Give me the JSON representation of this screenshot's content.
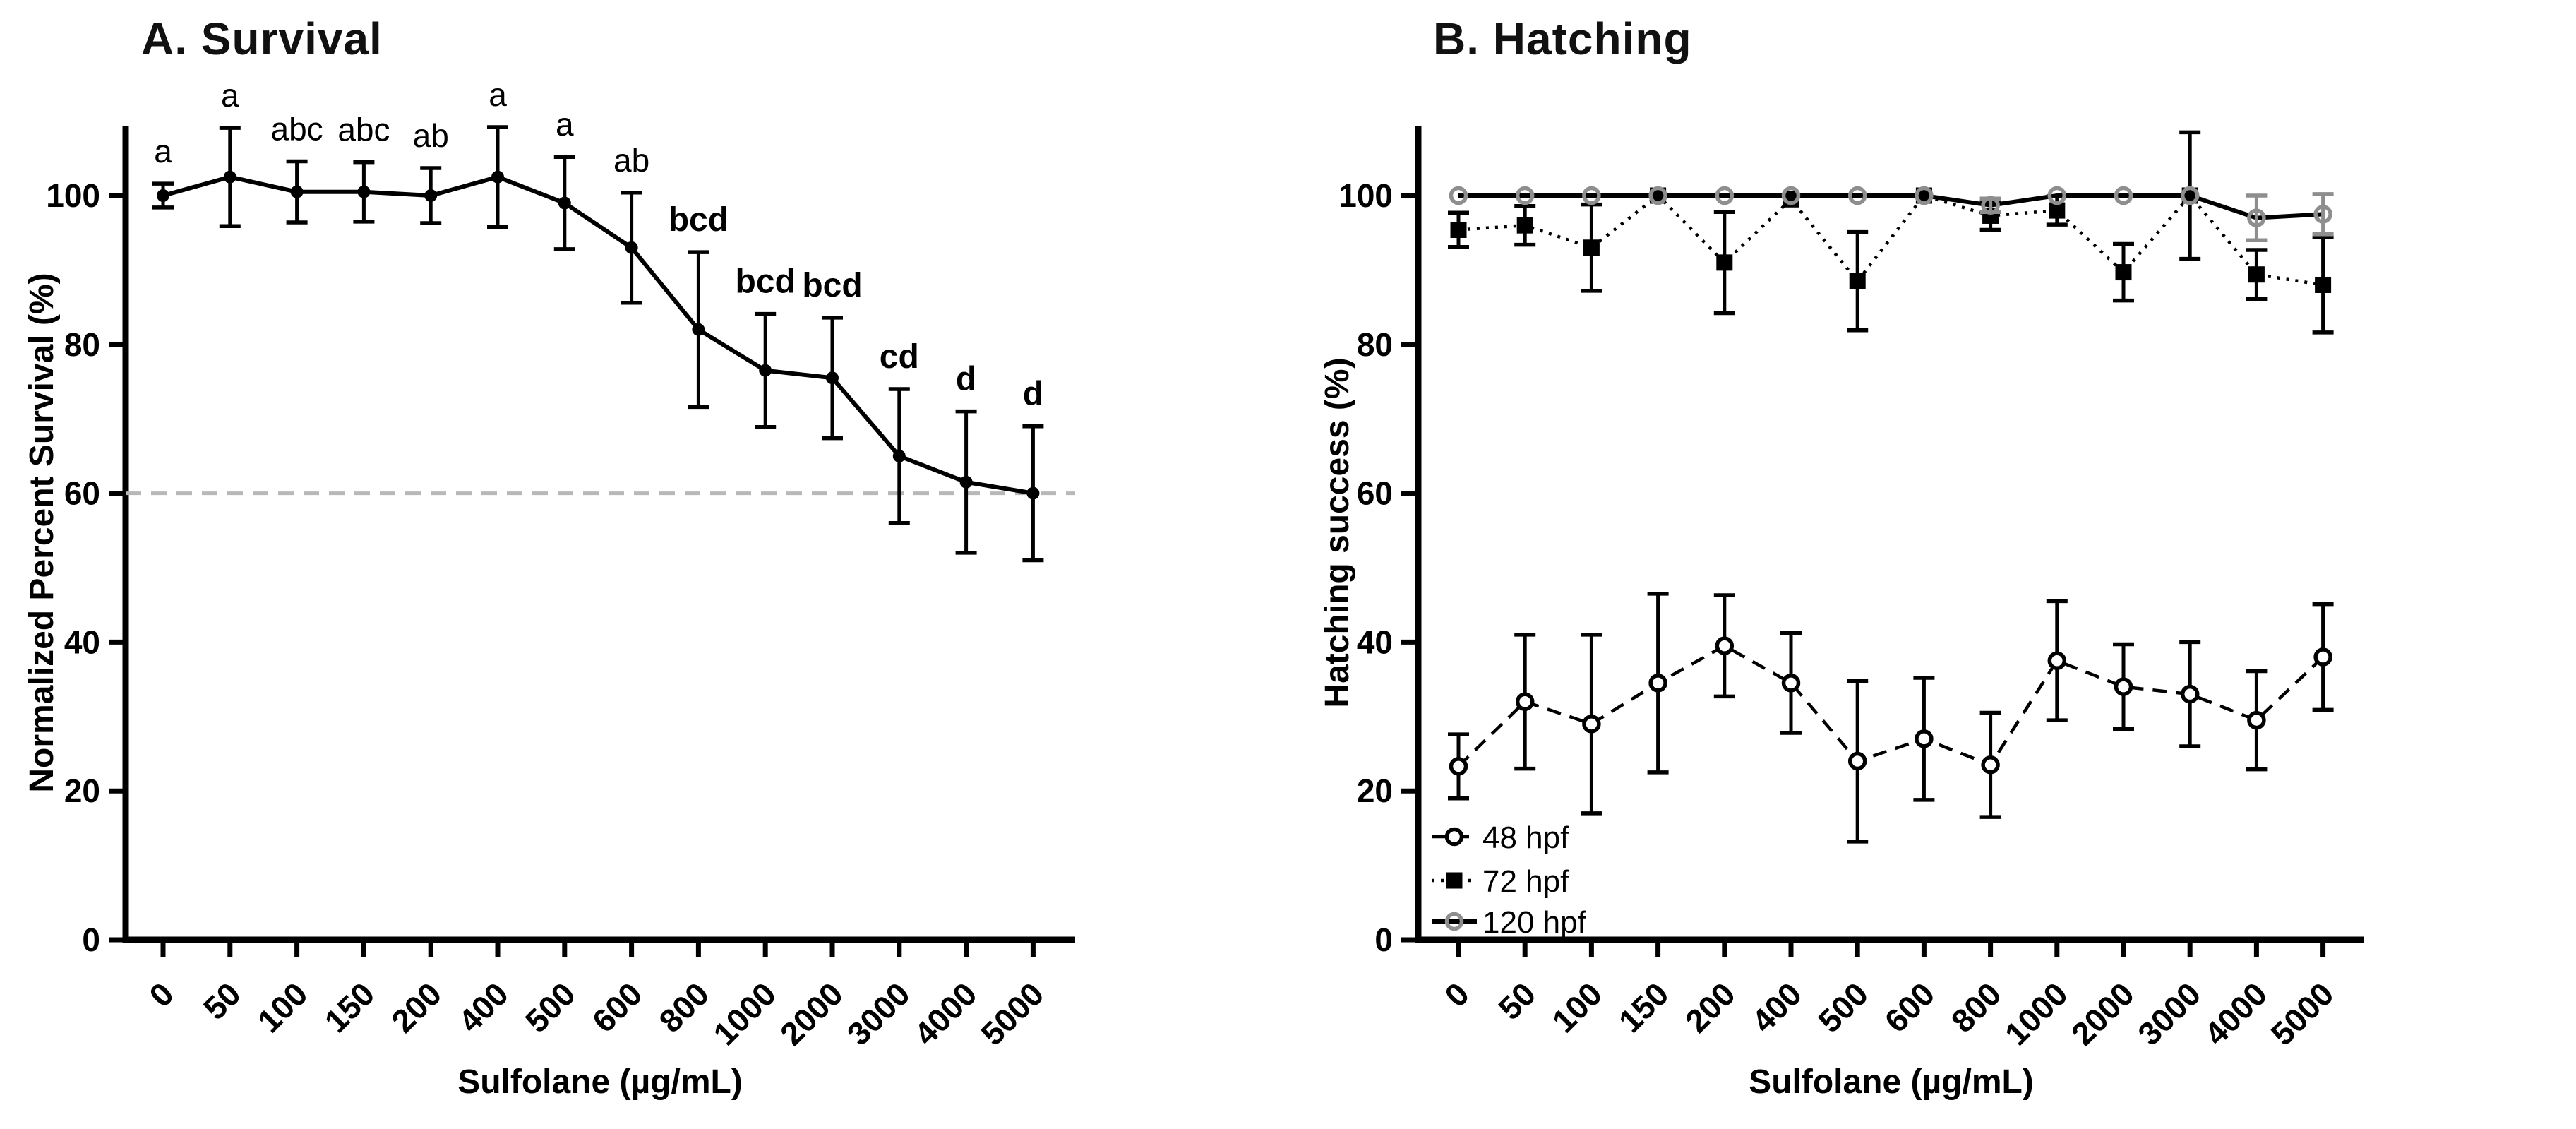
{
  "figure": {
    "background": "#ffffff",
    "text_color": "#000000",
    "gray_marker_color": "#8e8e8e",
    "reference_line_color": "#b8b8b8"
  },
  "chart_data": [
    {
      "type": "line",
      "panel": "A",
      "title": "A. Survival",
      "xlabel": "Sulfolane (µg/mL)",
      "ylabel": "Normalized Percent Survival (%)",
      "categories": [
        "0",
        "50",
        "100",
        "150",
        "200",
        "400",
        "500",
        "600",
        "800",
        "1000",
        "2000",
        "3000",
        "4000",
        "5000"
      ],
      "ylim": [
        0,
        110
      ],
      "yticks": [
        0,
        20,
        40,
        60,
        80,
        100
      ],
      "grid": false,
      "reference_line": {
        "y": 60,
        "style": "dashed",
        "color": "#b8b8b8"
      },
      "series": [
        {
          "name": "Normalized Percent Survival",
          "values": [
            100,
            102.5,
            100.5,
            100.5,
            100,
            102.5,
            99,
            93,
            82,
            76.5,
            75.5,
            65,
            61.5,
            60
          ],
          "errors": [
            1.6,
            6.6,
            4.1,
            4.0,
            3.7,
            6.7,
            6.2,
            7.4,
            10.4,
            7.6,
            8.1,
            9.0,
            9.5,
            9.0
          ],
          "marker": "dot",
          "marker_color": "#000000",
          "line_style": "solid",
          "line_color": "#000000",
          "error_color": "#000000"
        }
      ],
      "point_labels": [
        {
          "text": "a",
          "bold": false
        },
        {
          "text": "a",
          "bold": false
        },
        {
          "text": "abc",
          "bold": false
        },
        {
          "text": "abc",
          "bold": false
        },
        {
          "text": "ab",
          "bold": false
        },
        {
          "text": "a",
          "bold": false
        },
        {
          "text": "a",
          "bold": false
        },
        {
          "text": "ab",
          "bold": false
        },
        {
          "text": "bcd",
          "bold": true
        },
        {
          "text": "bcd",
          "bold": true
        },
        {
          "text": "bcd",
          "bold": true
        },
        {
          "text": "cd",
          "bold": true
        },
        {
          "text": "d",
          "bold": true
        },
        {
          "text": "d",
          "bold": true
        }
      ]
    },
    {
      "type": "line",
      "panel": "B",
      "title": "B. Hatching",
      "xlabel": "Sulfolane (µg/mL)",
      "ylabel": "Hatching success (%)",
      "categories": [
        "0",
        "50",
        "100",
        "150",
        "200",
        "400",
        "500",
        "600",
        "800",
        "1000",
        "2000",
        "3000",
        "4000",
        "5000"
      ],
      "ylim": [
        0,
        110
      ],
      "yticks": [
        0,
        20,
        40,
        60,
        80,
        100
      ],
      "grid": false,
      "legend": {
        "position": "bottom-left",
        "labels": [
          "48 hpf",
          "72 hpf",
          "120 hpf"
        ]
      },
      "series": [
        {
          "name": "48 hpf",
          "values": [
            23.3,
            32,
            29,
            34.5,
            39.5,
            34.5,
            24,
            27,
            23.5,
            37.5,
            34,
            33,
            29.5,
            38
          ],
          "errors": [
            4.3,
            9,
            12,
            12,
            6.8,
            6.7,
            10.8,
            8.2,
            7,
            8,
            5.7,
            7,
            6.6,
            7.1
          ],
          "marker": "open-circle",
          "marker_color": "#000000",
          "marker_fill": "#ffffff",
          "line_style": "dashed",
          "line_color": "#000000",
          "error_color": "#000000"
        },
        {
          "name": "72 hpf",
          "values": [
            95.4,
            96,
            93,
            100,
            91,
            99.5,
            88.5,
            100,
            97.3,
            98,
            89.7,
            100,
            89.4,
            88
          ],
          "errors": [
            2.3,
            2.6,
            5.8,
            0,
            6.8,
            0,
            6.6,
            0,
            1.9,
            1.9,
            3.8,
            8.5,
            3.3,
            6.4
          ],
          "marker": "filled-square",
          "marker_color": "#000000",
          "line_style": "dotted",
          "line_color": "#000000",
          "error_color": "#000000"
        },
        {
          "name": "120 hpf",
          "values": [
            100,
            100,
            100,
            100,
            100,
            100,
            100,
            100,
            98.7,
            100,
            100,
            100,
            97,
            97.5
          ],
          "errors": [
            0,
            0,
            0,
            0,
            0,
            0,
            0,
            0,
            0.9,
            0,
            0,
            0,
            3,
            2.7
          ],
          "marker": "open-circle",
          "marker_color": "#8e8e8e",
          "marker_fill": "none",
          "line_style": "solid",
          "line_color": "#000000",
          "error_color": "#8e8e8e"
        }
      ]
    }
  ]
}
